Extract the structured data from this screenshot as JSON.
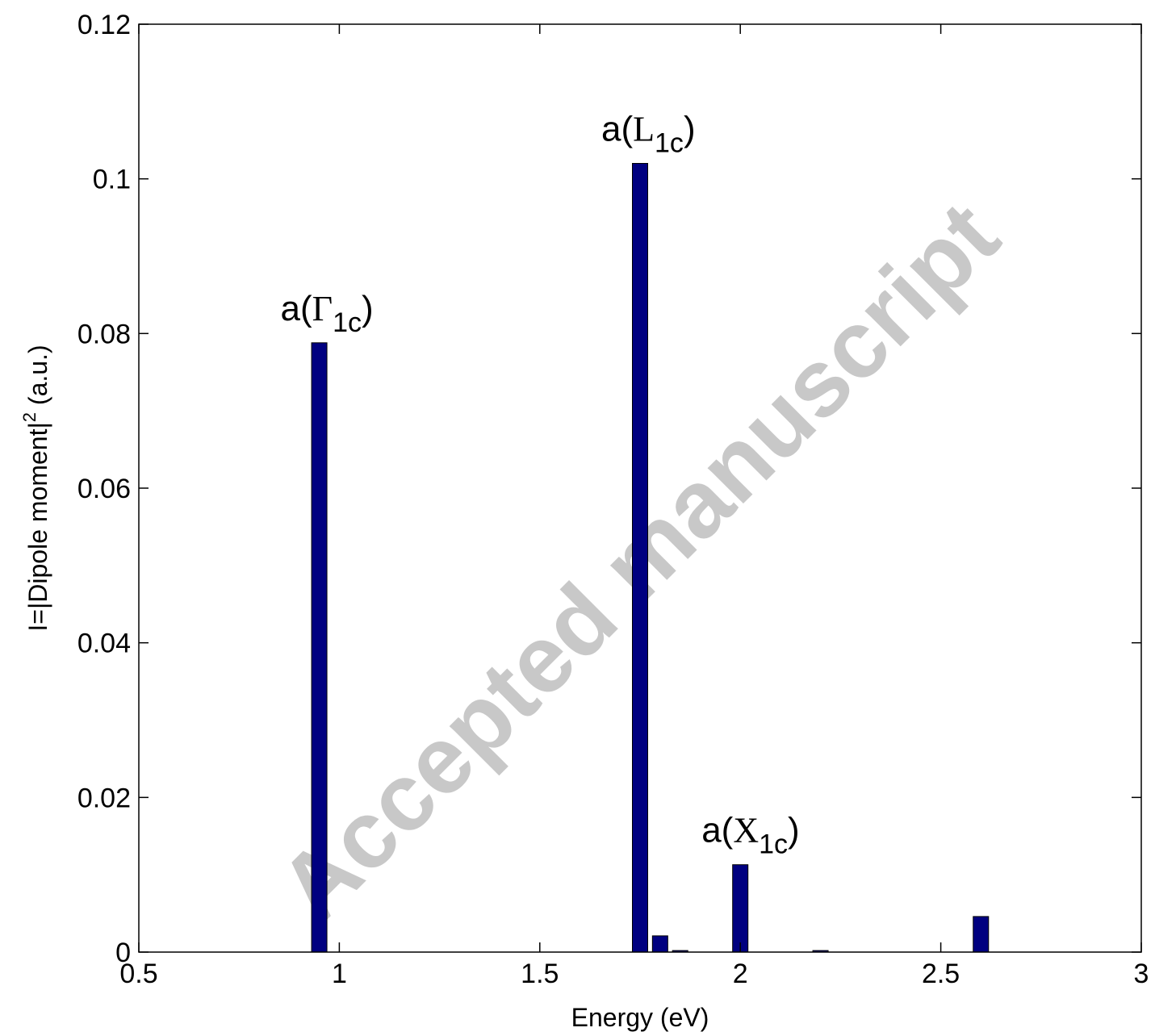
{
  "chart_data": {
    "type": "bar",
    "xlabel": "Energy (eV)",
    "ylabel": {
      "main": "I=|Dipole moment|",
      "sup": "2",
      "suffix": " (a.u.)"
    },
    "xlim": [
      0.5,
      3
    ],
    "ylim": [
      0,
      0.12
    ],
    "xticks": [
      "0.5",
      "1",
      "1.5",
      "2",
      "2.5",
      "3"
    ],
    "yticks": [
      "0",
      "0.02",
      "0.04",
      "0.06",
      "0.08",
      "0.1",
      "0.12"
    ],
    "grid": false,
    "bar_color": "#000080",
    "x": [
      0.95,
      1.75,
      1.8,
      1.85,
      2.0,
      2.2,
      2.6
    ],
    "values": [
      0.0788,
      0.102,
      0.0021,
      0.0002,
      0.0113,
      0.0002,
      0.0046
    ],
    "annotations": [
      {
        "base": "a(",
        "symbol": "Γ",
        "sub": "1c",
        "close": ")",
        "x": 0.95,
        "y": 0.0788
      },
      {
        "base": "a(",
        "symbol": "L",
        "sub": "1c",
        "close": ")",
        "x": 1.75,
        "y": 0.102
      },
      {
        "base": "a(",
        "symbol": "X",
        "sub": "1c",
        "close": ")",
        "x": 2.0,
        "y": 0.0113
      }
    ]
  },
  "watermark": "Accepted manuscript"
}
